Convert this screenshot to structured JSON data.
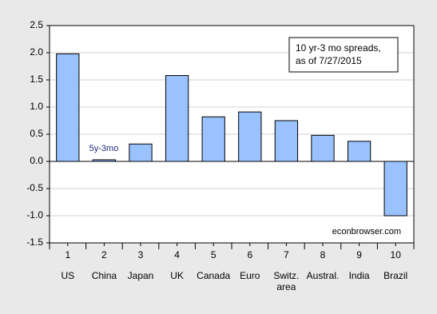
{
  "chart_data": {
    "type": "bar",
    "x": [
      1,
      2,
      3,
      4,
      5,
      6,
      7,
      8,
      9,
      10
    ],
    "categories": [
      "US",
      "China",
      "Japan",
      "UK",
      "Canada",
      "Euro",
      "Switz. area",
      "Austral.",
      "India",
      "Brazil"
    ],
    "values": [
      1.98,
      0.03,
      0.32,
      1.58,
      0.82,
      0.91,
      0.75,
      0.48,
      0.37,
      -1.0
    ],
    "color": "#99c2ff",
    "xlim": [
      0.5,
      10.5
    ],
    "xticks": [
      1,
      2,
      3,
      4,
      5,
      6,
      7,
      8,
      9,
      10
    ],
    "ylim": [
      -1.5,
      2.5
    ],
    "yticks": [
      -1.5,
      {
        "value": -1,
        "label": "-1.0"
      },
      -0.5,
      {
        "value": 0,
        "label": "0.0"
      },
      0.5,
      {
        "value": 1,
        "label": "1.0"
      },
      1.5,
      {
        "value": 2,
        "label": "2.0"
      },
      2.5
    ],
    "grid": true,
    "legend_text": [
      "10 yr-3 mo spreads,",
      "as of 7/27/2015"
    ],
    "annotations": [
      "5y-3mo",
      "econbrowser.com"
    ]
  }
}
